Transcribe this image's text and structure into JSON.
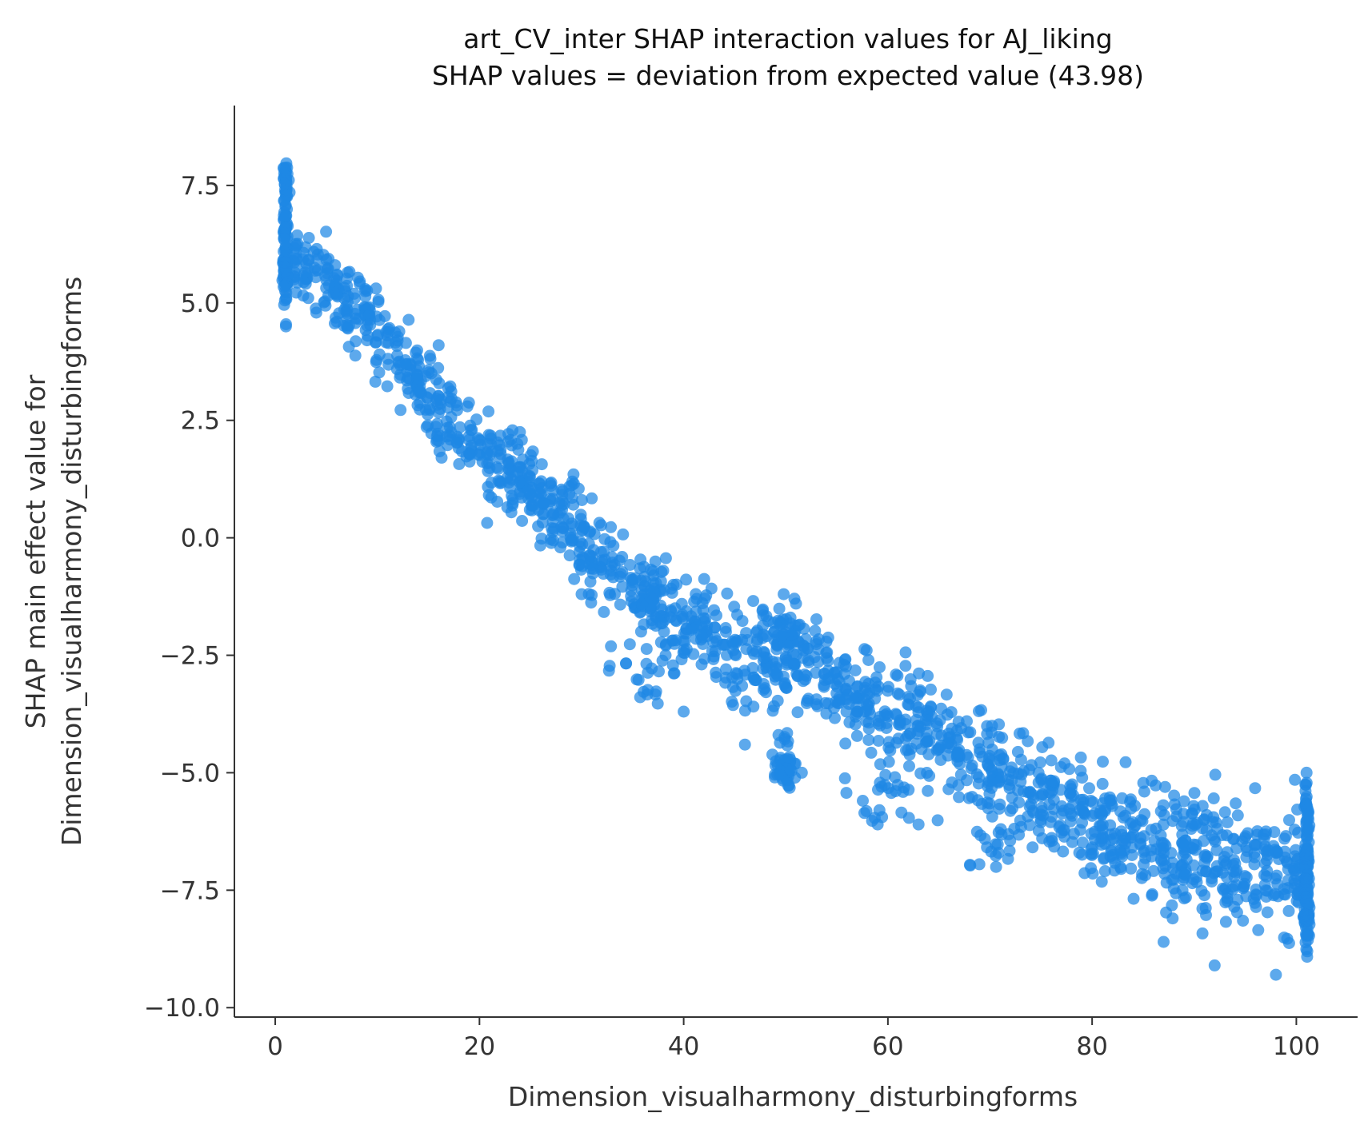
{
  "chart_data": {
    "type": "scatter",
    "title": "art_CV_inter SHAP interaction values for AJ_liking",
    "subtitle": "SHAP values = deviation from expected value (43.98)",
    "xlabel": "Dimension_visualharmony_disturbingforms",
    "ylabel_line1": "SHAP main effect value for",
    "ylabel_line2": "Dimension_visualharmony_disturbingforms",
    "xlim": [
      -4,
      106
    ],
    "ylim": [
      -10.2,
      9.2
    ],
    "x_ticks": [
      0,
      20,
      40,
      60,
      80,
      100
    ],
    "x_tick_labels": [
      "0",
      "20",
      "40",
      "60",
      "80",
      "100"
    ],
    "y_ticks": [
      7.5,
      5.0,
      2.5,
      0.0,
      -2.5,
      -5.0,
      -7.5,
      -10.0
    ],
    "y_tick_labels": [
      "7.5",
      "5.0",
      "2.5",
      "0.0",
      "−2.5",
      "−5.0",
      "−7.5",
      "−10.0"
    ],
    "grid": false,
    "point_color": "#1E88E5",
    "trend": [
      {
        "x": 1,
        "y": 6.0
      },
      {
        "x": 5,
        "y": 5.5
      },
      {
        "x": 10,
        "y": 4.4
      },
      {
        "x": 15,
        "y": 3.0
      },
      {
        "x": 20,
        "y": 1.9
      },
      {
        "x": 25,
        "y": 1.0
      },
      {
        "x": 30,
        "y": -0.1
      },
      {
        "x": 35,
        "y": -1.0
      },
      {
        "x": 40,
        "y": -1.8
      },
      {
        "x": 45,
        "y": -2.4
      },
      {
        "x": 50,
        "y": -2.5
      },
      {
        "x": 55,
        "y": -3.0
      },
      {
        "x": 60,
        "y": -3.8
      },
      {
        "x": 65,
        "y": -4.3
      },
      {
        "x": 70,
        "y": -4.9
      },
      {
        "x": 75,
        "y": -5.6
      },
      {
        "x": 80,
        "y": -6.0
      },
      {
        "x": 85,
        "y": -6.4
      },
      {
        "x": 90,
        "y": -6.7
      },
      {
        "x": 95,
        "y": -7.0
      },
      {
        "x": 101,
        "y": -7.0
      }
    ],
    "clusters": [
      {
        "x": 50,
        "y": -4.8,
        "dx": 1.5,
        "dy": 0.5,
        "n": 45
      },
      {
        "x": 50,
        "y": -1.9,
        "dx": 1.5,
        "dy": 0.35,
        "n": 30
      },
      {
        "x": 36,
        "y": -2.8,
        "dx": 3.5,
        "dy": 0.5,
        "n": 22
      },
      {
        "x": 60,
        "y": -5.4,
        "dx": 4,
        "dy": 0.6,
        "n": 25
      },
      {
        "x": 70,
        "y": -6.6,
        "dx": 3,
        "dy": 0.4,
        "n": 20
      },
      {
        "x": 1,
        "y": 7.6,
        "dx": 0.3,
        "dy": 0.4,
        "n": 30
      },
      {
        "x": 101,
        "y": -8.0,
        "dx": 0.3,
        "dy": 0.6,
        "n": 40
      },
      {
        "x": 101,
        "y": -5.7,
        "dx": 0.3,
        "dy": 0.5,
        "n": 15
      }
    ],
    "outliers": [
      {
        "x": 92,
        "y": -9.1
      },
      {
        "x": 98,
        "y": -9.3
      },
      {
        "x": 87,
        "y": -8.6
      },
      {
        "x": 59,
        "y": -6.1
      },
      {
        "x": 63,
        "y": -6.1
      },
      {
        "x": 101,
        "y": -5.0
      },
      {
        "x": 51,
        "y": -1.4
      },
      {
        "x": 16,
        "y": 4.1
      },
      {
        "x": 46,
        "y": -4.4
      },
      {
        "x": 40,
        "y": -3.7
      },
      {
        "x": 39,
        "y": -1.0
      },
      {
        "x": 30,
        "y": -1.2
      }
    ]
  }
}
